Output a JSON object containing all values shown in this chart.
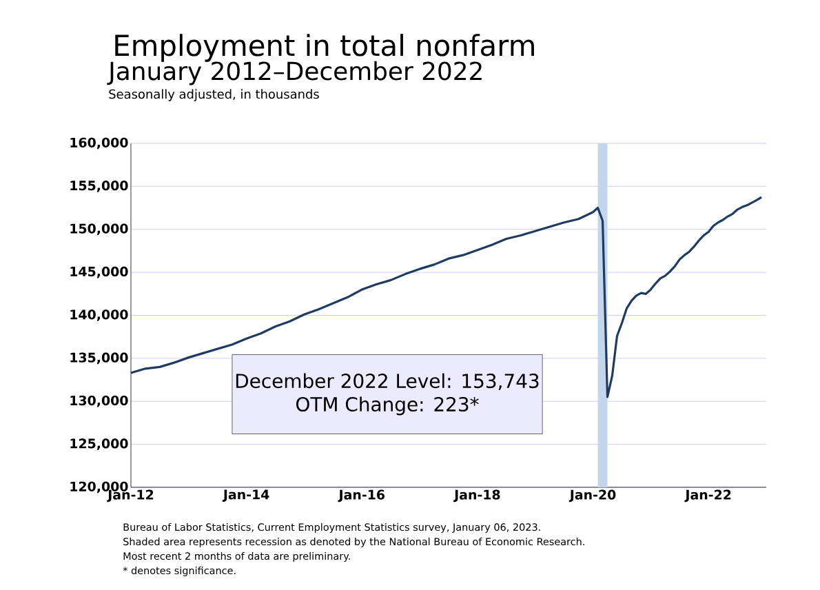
{
  "chart_data": {
    "type": "line",
    "title": "Employment in total nonfarm",
    "subtitle": "January 2012–December 2022",
    "ylabel": "Seasonally adjusted, in thousands",
    "x": [
      "2012-01",
      "2012-04",
      "2012-07",
      "2012-10",
      "2013-01",
      "2013-04",
      "2013-07",
      "2013-10",
      "2014-01",
      "2014-04",
      "2014-07",
      "2014-10",
      "2015-01",
      "2015-04",
      "2015-07",
      "2015-10",
      "2016-01",
      "2016-04",
      "2016-07",
      "2016-10",
      "2017-01",
      "2017-04",
      "2017-07",
      "2017-10",
      "2018-01",
      "2018-04",
      "2018-07",
      "2018-10",
      "2019-01",
      "2019-04",
      "2019-07",
      "2019-10",
      "2020-01",
      "2020-02",
      "2020-03",
      "2020-04",
      "2020-05",
      "2020-06",
      "2020-07",
      "2020-08",
      "2020-09",
      "2020-10",
      "2020-11",
      "2020-12",
      "2021-01",
      "2021-02",
      "2021-03",
      "2021-04",
      "2021-05",
      "2021-06",
      "2021-07",
      "2021-08",
      "2021-09",
      "2021-10",
      "2021-11",
      "2021-12",
      "2022-01",
      "2022-02",
      "2022-03",
      "2022-04",
      "2022-05",
      "2022-06",
      "2022-07",
      "2022-08",
      "2022-09",
      "2022-10",
      "2022-11",
      "2022-12"
    ],
    "series": [
      {
        "color": "#1f3b60",
        "values": [
          133300,
          133800,
          134000,
          134500,
          135100,
          135600,
          136100,
          136600,
          137300,
          137900,
          138700,
          139300,
          140100,
          140700,
          141400,
          142100,
          143000,
          143600,
          144100,
          144800,
          145400,
          145900,
          146600,
          147000,
          147600,
          148200,
          148900,
          149300,
          149800,
          150300,
          150800,
          151200,
          152000,
          152500,
          151000,
          130500,
          133000,
          137600,
          139100,
          140800,
          141700,
          142300,
          142600,
          142500,
          143000,
          143700,
          144300,
          144600,
          145100,
          145700,
          146500,
          147000,
          147400,
          148000,
          148700,
          149300,
          149700,
          150400,
          150800,
          151100,
          151500,
          151800,
          152300,
          152600,
          152800,
          153100,
          153400,
          153743
        ]
      }
    ],
    "xlim": [
      "2012-01",
      "2023-01"
    ],
    "xticks": [
      {
        "value": "2012-01",
        "label": "Jan-12"
      },
      {
        "value": "2014-01",
        "label": "Jan-14"
      },
      {
        "value": "2016-01",
        "label": "Jan-16"
      },
      {
        "value": "2018-01",
        "label": "Jan-18"
      },
      {
        "value": "2020-01",
        "label": "Jan-20"
      },
      {
        "value": "2022-01",
        "label": "Jan-22"
      }
    ],
    "ylim": [
      120000,
      160000
    ],
    "yticks": [
      {
        "value": 120000,
        "label": "120,000"
      },
      {
        "value": 125000,
        "label": "125,000"
      },
      {
        "value": 130000,
        "label": "130,000"
      },
      {
        "value": 135000,
        "label": "135,000"
      },
      {
        "value": 140000,
        "label": "140,000"
      },
      {
        "value": 145000,
        "label": "145,000"
      },
      {
        "value": 150000,
        "label": "150,000"
      },
      {
        "value": 155000,
        "label": "155,000"
      },
      {
        "value": 160000,
        "label": "160,000"
      }
    ],
    "grid": "y",
    "bands": [
      {
        "axis": "x",
        "from": "2020-02",
        "to": "2020-04",
        "color": "#c5d6ec"
      }
    ],
    "annotations": [
      "December 2022 Level: 153,743",
      "OTM Change: 223*",
      "Bureau of Labor Statistics, Current Employment Statistics survey, January 06, 2023.",
      "Shaded area represents recession as denoted by the National Bureau of Economic Research.",
      "Most recent 2 months of data are preliminary.",
      "* denotes significance."
    ]
  }
}
